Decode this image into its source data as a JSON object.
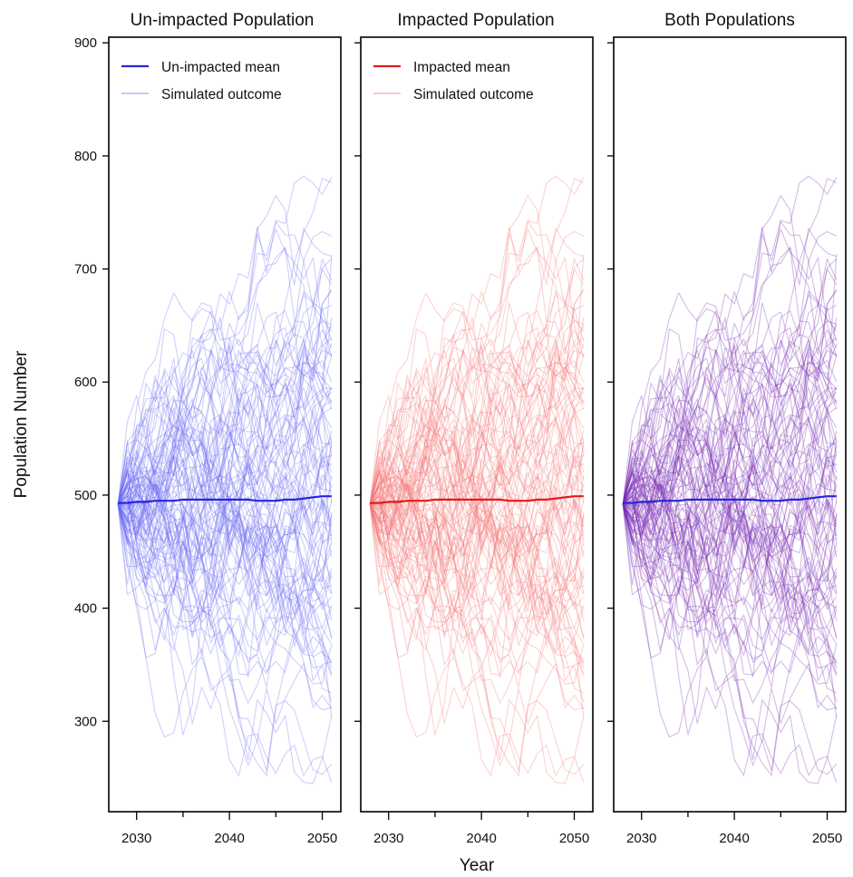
{
  "chart_data": [
    {
      "type": "line",
      "title": "Un-impacted Population",
      "x": [
        2028,
        2029,
        2030,
        2031,
        2032,
        2033,
        2034,
        2035,
        2036,
        2037,
        2038,
        2039,
        2040,
        2041,
        2042,
        2043,
        2044,
        2045,
        2046,
        2047,
        2048,
        2049,
        2050,
        2051
      ],
      "xlim": [
        2027,
        2052
      ],
      "ylim": [
        220,
        905
      ],
      "xticks": [
        2030,
        2040,
        2050
      ],
      "yticks": [
        300,
        400,
        500,
        600,
        700,
        800,
        900
      ],
      "xlabel": "",
      "ylabel": "Population Number",
      "grid": false,
      "legend_position": "top-left",
      "series": [
        {
          "name": "Un-impacted mean",
          "color": "#2626d9",
          "values": [
            493,
            493,
            494,
            494,
            495,
            495,
            495,
            496,
            496,
            496,
            496,
            496,
            496,
            496,
            496,
            495,
            495,
            495,
            496,
            496,
            497,
            498,
            499,
            499
          ]
        },
        {
          "name": "Simulated outcome",
          "color": "#6b6bf5",
          "opacity": 0.32,
          "count": 100,
          "start": 492,
          "max": 795,
          "min": 245
        }
      ]
    },
    {
      "type": "line",
      "title": "Impacted Population",
      "x": [
        2028,
        2029,
        2030,
        2031,
        2032,
        2033,
        2034,
        2035,
        2036,
        2037,
        2038,
        2039,
        2040,
        2041,
        2042,
        2043,
        2044,
        2045,
        2046,
        2047,
        2048,
        2049,
        2050,
        2051
      ],
      "xlim": [
        2027,
        2052
      ],
      "ylim": [
        220,
        905
      ],
      "xticks": [
        2030,
        2040,
        2050
      ],
      "yticks": [
        300,
        400,
        500,
        600,
        700,
        800,
        900
      ],
      "xlabel": "Year",
      "ylabel": "",
      "grid": false,
      "legend_position": "top-left",
      "series": [
        {
          "name": "Impacted mean",
          "color": "#e31a1a",
          "values": [
            493,
            493,
            494,
            494,
            495,
            495,
            495,
            496,
            496,
            496,
            496,
            496,
            496,
            496,
            496,
            495,
            495,
            495,
            496,
            496,
            497,
            498,
            499,
            499
          ]
        },
        {
          "name": "Simulated outcome",
          "color": "#f57575",
          "opacity": 0.32,
          "count": 100,
          "start": 492,
          "max": 795,
          "min": 245
        }
      ]
    },
    {
      "type": "line",
      "title": "Both Populations",
      "x": [
        2028,
        2029,
        2030,
        2031,
        2032,
        2033,
        2034,
        2035,
        2036,
        2037,
        2038,
        2039,
        2040,
        2041,
        2042,
        2043,
        2044,
        2045,
        2046,
        2047,
        2048,
        2049,
        2050,
        2051
      ],
      "xlim": [
        2027,
        2052
      ],
      "ylim": [
        220,
        905
      ],
      "xticks": [
        2030,
        2040,
        2050
      ],
      "yticks": [
        300,
        400,
        500,
        600,
        700,
        800,
        900
      ],
      "xlabel": "",
      "ylabel": "",
      "grid": false,
      "legend_position": "none",
      "series": [
        {
          "color": "#2626d9",
          "values": [
            493,
            493,
            494,
            494,
            495,
            495,
            495,
            496,
            496,
            496,
            496,
            496,
            496,
            496,
            496,
            495,
            495,
            495,
            496,
            496,
            497,
            498,
            499,
            499
          ]
        },
        {
          "color": "#7a2db5",
          "opacity": 0.32,
          "count": 100,
          "start": 492,
          "max": 795,
          "min": 245
        }
      ]
    }
  ]
}
